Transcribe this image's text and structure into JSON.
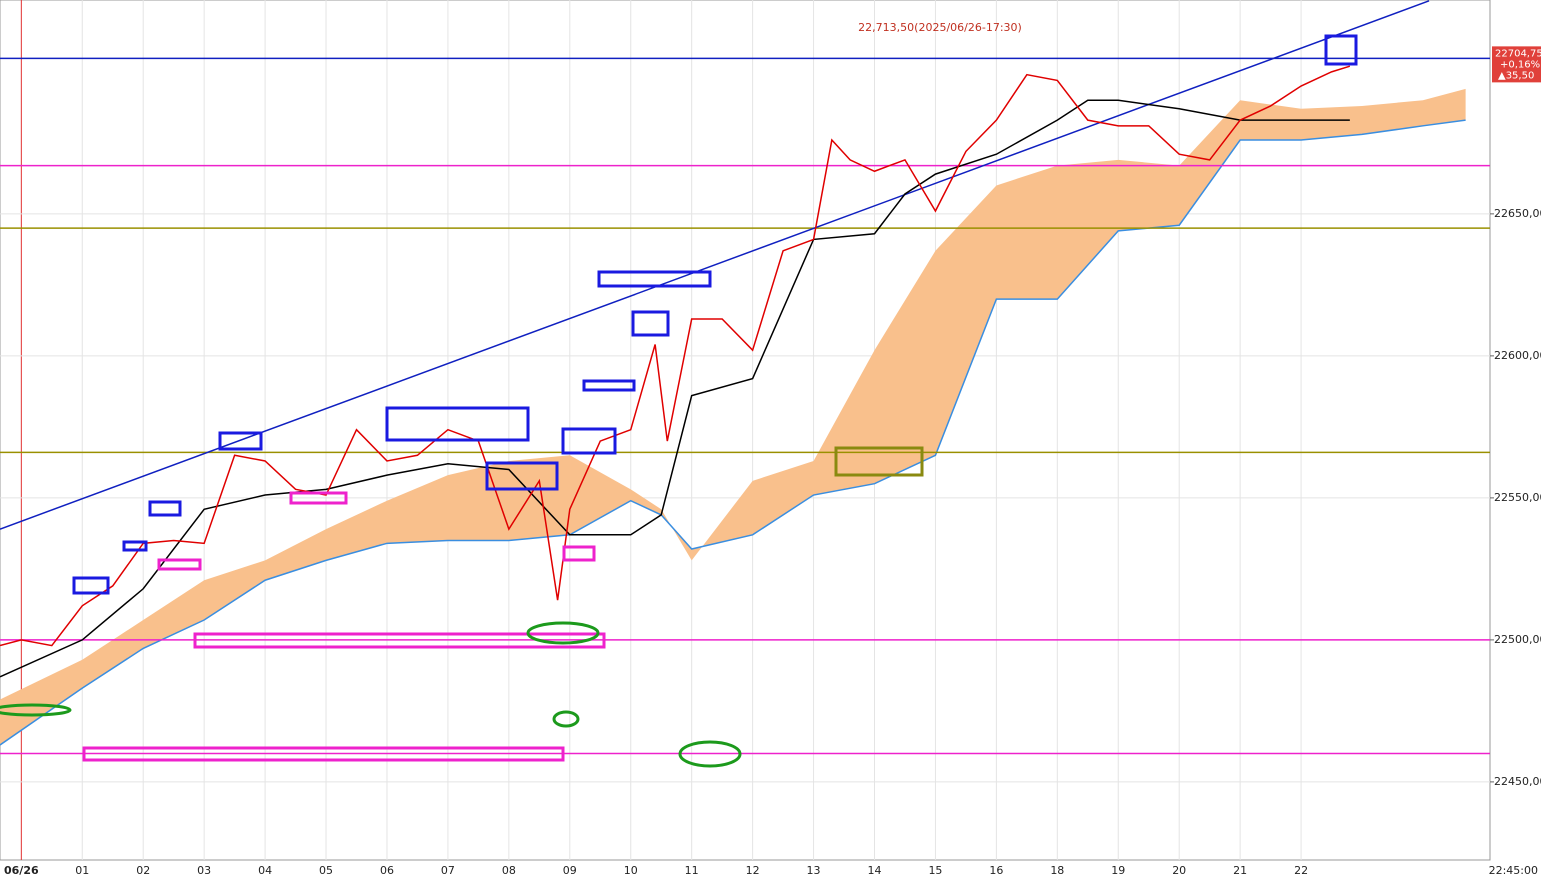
{
  "chart_data": {
    "type": "line",
    "annotation": "22,713,50(2025/06/26-17:30)",
    "xlim": [
      -0.35,
      24.1
    ],
    "ylim": [
      22422.5,
      22725.3
    ],
    "xticks": [
      {
        "value": 0,
        "label": "06/26"
      },
      {
        "value": 1,
        "label": "01"
      },
      {
        "value": 2,
        "label": "02"
      },
      {
        "value": 3,
        "label": "03"
      },
      {
        "value": 4,
        "label": "04"
      },
      {
        "value": 5,
        "label": "05"
      },
      {
        "value": 6,
        "label": "06"
      },
      {
        "value": 7,
        "label": "07"
      },
      {
        "value": 8,
        "label": "08"
      },
      {
        "value": 9,
        "label": "09"
      },
      {
        "value": 10,
        "label": "10"
      },
      {
        "value": 11,
        "label": "11"
      },
      {
        "value": 12,
        "label": "12"
      },
      {
        "value": 13,
        "label": "13"
      },
      {
        "value": 14,
        "label": "14"
      },
      {
        "value": 15,
        "label": "15"
      },
      {
        "value": 16,
        "label": "16"
      },
      {
        "value": 17,
        "label": "18"
      },
      {
        "value": 18,
        "label": "19"
      },
      {
        "value": 19,
        "label": "20"
      },
      {
        "value": 20,
        "label": "21"
      },
      {
        "value": 21,
        "label": "22"
      }
    ],
    "time_label": "22:45:00",
    "yticks": [
      {
        "value": 22450,
        "label": "22450,00"
      },
      {
        "value": 22500,
        "label": "22500,00"
      },
      {
        "value": 22550,
        "label": "22550,00"
      },
      {
        "value": 22600,
        "label": "22600,00"
      },
      {
        "value": 22650,
        "label": "22650,00"
      }
    ],
    "grid": true,
    "current": {
      "value": 22704.75,
      "label": "22704,75",
      "change": "+0,16%",
      "diff": "▲35,50",
      "color": "#e0403a"
    },
    "levels": [
      {
        "value": 22704.75,
        "color": "#1020c0"
      },
      {
        "value": 22667,
        "color": "#ee22cc"
      },
      {
        "value": 22645,
        "color": "#9a9000"
      },
      {
        "value": 22566,
        "color": "#9a9000"
      },
      {
        "value": 22500,
        "color": "#ee22cc"
      },
      {
        "value": 22460,
        "color": "#ee22cc"
      }
    ],
    "trendline": {
      "color": "#1020c0",
      "x": [
        -0.35,
        23.1
      ],
      "values": [
        22539,
        22725
      ]
    },
    "cloud": {
      "color": "#f9c08c",
      "line_color": "#3a8ee0",
      "x": [
        -0.35,
        1,
        2,
        3,
        4,
        5,
        6,
        7,
        8,
        9,
        10,
        10.5,
        11,
        12,
        13,
        14,
        15,
        16,
        17,
        18,
        19,
        20,
        21,
        22,
        23,
        23.7
      ],
      "span_a": [
        22479,
        22493,
        22507,
        22521,
        22528,
        22539,
        22549,
        22558,
        22563,
        22565,
        22553,
        22546,
        22528,
        22556,
        22563,
        22602,
        22637,
        22660,
        22667,
        22669,
        22667,
        22690,
        22687,
        22688,
        22690,
        22694
      ],
      "span_b": [
        22463,
        22483,
        22497,
        22507,
        22521,
        22528,
        22534,
        22535,
        22535,
        22537,
        22549,
        22544,
        22532,
        22537,
        22551,
        22555,
        22565,
        22620,
        22620,
        22644,
        22646,
        22676,
        22676,
        22678,
        22681,
        22683
      ]
    },
    "kijun": {
      "color": "#000000",
      "x": [
        -0.35,
        1,
        2,
        3,
        4,
        5,
        6,
        7,
        8,
        9,
        10,
        10.5,
        11,
        12,
        13,
        14,
        14.5,
        15,
        16,
        17,
        17.5,
        18,
        19,
        20,
        21,
        21.8
      ],
      "values": [
        22487,
        22500,
        22518,
        22546,
        22551,
        22553,
        22558,
        22562,
        22560,
        22537,
        22537,
        22544,
        22586,
        22592,
        22641,
        22643,
        22657,
        22664,
        22671,
        22683,
        22690,
        22690,
        22687,
        22683,
        22683,
        22683
      ]
    },
    "price": {
      "color": "#e00000",
      "x": [
        -0.35,
        0,
        0.5,
        1,
        1.5,
        2,
        2.5,
        3,
        3.5,
        4,
        4.5,
        5,
        5.5,
        6,
        6.5,
        7,
        7.5,
        8,
        8.5,
        8.8,
        9,
        9.5,
        10,
        10.4,
        10.6,
        11,
        11.5,
        12,
        12.5,
        13,
        13.3,
        13.6,
        14,
        14.5,
        15,
        15.5,
        16,
        16.5,
        17,
        17.5,
        18,
        18.5,
        19,
        19.5,
        20,
        20.5,
        21,
        21.5,
        21.8
      ],
      "values": [
        22498,
        22500,
        22498,
        22512,
        22519,
        22534,
        22535,
        22534,
        22565,
        22563,
        22553,
        22551,
        22574,
        22563,
        22565,
        22574,
        22570,
        22539,
        22556,
        22514,
        22546,
        22570,
        22574,
        22604,
        22570,
        22613,
        22613,
        22602,
        22637,
        22641,
        22676,
        22669,
        22665,
        22669,
        22651,
        22672,
        22683,
        22699,
        22697,
        22683,
        22681,
        22681,
        22671,
        22669,
        22683,
        22688,
        22695,
        22700,
        22702
      ]
    }
  }
}
